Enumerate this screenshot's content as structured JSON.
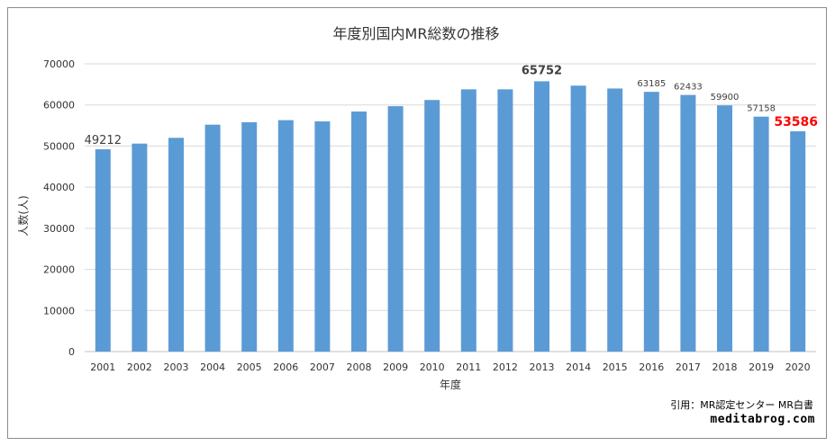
{
  "chart_data": {
    "type": "bar",
    "title": "年度別国内MR総数の推移",
    "xlabel": "年度",
    "ylabel": "人数(人)",
    "ylim": [
      0,
      70000
    ],
    "yticks": [
      0,
      10000,
      20000,
      30000,
      40000,
      50000,
      60000,
      70000
    ],
    "grid": true,
    "bar_color": "#5b9bd5",
    "categories": [
      "2001",
      "2002",
      "2003",
      "2004",
      "2005",
      "2006",
      "2007",
      "2008",
      "2009",
      "2010",
      "2011",
      "2012",
      "2013",
      "2014",
      "2015",
      "2016",
      "2017",
      "2018",
      "2019",
      "2020"
    ],
    "values": [
      49212,
      50600,
      52000,
      55200,
      55800,
      56300,
      56000,
      58400,
      59700,
      61200,
      63800,
      63800,
      65752,
      64700,
      64000,
      63185,
      62433,
      59900,
      57158,
      53586
    ],
    "data_labels": [
      {
        "category": "2001",
        "text": "49212",
        "style": "large"
      },
      {
        "category": "2013",
        "text": "65752",
        "style": "bold"
      },
      {
        "category": "2016",
        "text": "63185",
        "style": "small"
      },
      {
        "category": "2017",
        "text": "62433",
        "style": "small"
      },
      {
        "category": "2018",
        "text": "59900",
        "style": "small"
      },
      {
        "category": "2019",
        "text": "57158",
        "style": "small"
      },
      {
        "category": "2020",
        "text": "53586",
        "style": "highlight",
        "color": "#ff0000"
      }
    ]
  },
  "source": "引用：MR認定センター MR白書",
  "brand": "meditabrog.com"
}
